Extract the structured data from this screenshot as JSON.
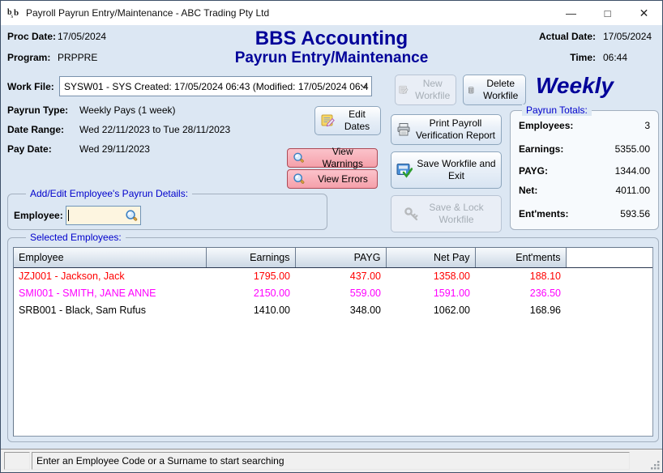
{
  "window": {
    "title": "Payroll Payrun Entry/Maintenance - ABC Trading Pty Ltd",
    "controls": {
      "minimize": "—",
      "maximize": "□",
      "close": "✕"
    }
  },
  "header": {
    "proc_date_label": "Proc Date:",
    "proc_date": "17/05/2024",
    "program_label": "Program:",
    "program": "PRPPRE",
    "app_title": "BBS Accounting",
    "screen_title": "Payrun Entry/Maintenance",
    "actual_date_label": "Actual Date:",
    "actual_date": "17/05/2024",
    "time_label": "Time:",
    "time": "06:44"
  },
  "workfile": {
    "label": "Work File:",
    "selected_option": "SYSW01 - SYS Created: 17/05/2024 06:43 (Modified: 17/05/2024 06:4",
    "new_button": "New Workfile",
    "delete_button": "Delete Workfile",
    "frequency": "Weekly"
  },
  "payrun_info": {
    "type_label": "Payrun Type:",
    "type": "Weekly Pays (1 week)",
    "date_range_label": "Date Range:",
    "date_range": "Wed 22/11/2023 to Tue 28/11/2023",
    "pay_date_label": "Pay Date:",
    "pay_date": "Wed 29/11/2023"
  },
  "buttons": {
    "edit_dates": "Edit Dates",
    "view_warnings": "View Warnings",
    "view_errors": "View Errors",
    "print_report": "Print Payroll Verification Report",
    "save_exit": "Save Workfile and Exit",
    "save_lock": "Save & Lock Workfile"
  },
  "payrun_totals": {
    "title": "Payrun Totals:",
    "rows": [
      {
        "label": "Employees:",
        "value": "3"
      },
      {
        "label": "Earnings:",
        "value": "5355.00"
      },
      {
        "label": "PAYG:",
        "value": "1344.00"
      },
      {
        "label": "Net:",
        "value": "4011.00"
      },
      {
        "label": "Ent'ments:",
        "value": "593.56"
      }
    ]
  },
  "add_edit": {
    "title": "Add/Edit Employee's Payrun Details:",
    "employee_label": "Employee:",
    "employee_value": ""
  },
  "selected_employees": {
    "title": "Selected Employees:",
    "columns": [
      "Employee",
      "Earnings",
      "PAYG",
      "Net Pay",
      "Ent'ments"
    ],
    "row_keys": [
      "employee",
      "earnings",
      "payg",
      "net_pay",
      "entments"
    ],
    "rows": [
      {
        "employee": "JZJ001 - Jackson, Jack",
        "earnings": "1795.00",
        "payg": "437.00",
        "net_pay": "1358.00",
        "entments": "188.10",
        "color": "#ff0000"
      },
      {
        "employee": "SMI001 - SMITH, JANE ANNE",
        "earnings": "2150.00",
        "payg": "559.00",
        "net_pay": "1591.00",
        "entments": "236.50",
        "color": "#ff00ff"
      },
      {
        "employee": "SRB001 - Black, Sam Rufus",
        "earnings": "1410.00",
        "payg": "348.00",
        "net_pay": "1062.00",
        "entments": "168.96",
        "color": "#000000"
      }
    ]
  },
  "status_bar": {
    "message": "Enter an Employee Code or a Surname to start searching"
  },
  "icons": {
    "app_logo": "bsb-monogram",
    "minimize": "dash-glyph",
    "maximize": "square-glyph",
    "close": "x-glyph",
    "dropdown": "chevron-down",
    "new_workfile": "note-pencil",
    "delete_workfile": "trash-can",
    "edit_dates": "note-pencil",
    "print": "printer",
    "save_exit": "disk-green-check",
    "save_lock": "key",
    "search": "magnifier"
  },
  "colors": {
    "accent_navy": "#000099",
    "group_label_blue": "#0000cc",
    "warning_pink": "#f5a0aa",
    "warning_border": "#ad4a56",
    "input_cream": "#fdf5e0",
    "row_red": "#ff0000",
    "row_magenta": "#ff00ff",
    "row_black": "#000000",
    "window_bg": "#dce7f3"
  }
}
